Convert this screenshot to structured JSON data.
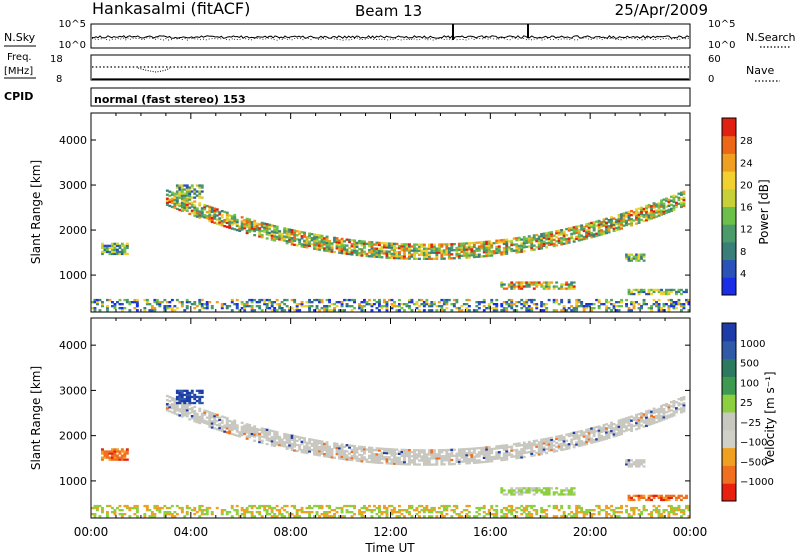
{
  "header": {
    "station": "Hankasalmi (fitACF)",
    "beam": "Beam 13",
    "date": "25/Apr/2009"
  },
  "noise_panel": {
    "left_label": "N.Sky",
    "right_label": "N.Search",
    "left_ticks": [
      "10^5",
      "10^0"
    ],
    "right_ticks": [
      "10^5",
      "10^0"
    ]
  },
  "freq_panel": {
    "label_line1": "Freq.",
    "label_line2": "[MHz]",
    "left_ticks": [
      "18",
      "8"
    ],
    "right_label": "Nave",
    "right_ticks": [
      "60",
      "0"
    ]
  },
  "cpid": {
    "label": "CPID",
    "text": "normal (fast stereo) 153"
  },
  "x_axis": {
    "label": "Time UT",
    "ticks": [
      "00:00",
      "04:00",
      "08:00",
      "12:00",
      "16:00",
      "20:00",
      "00:00"
    ]
  },
  "chart_data": [
    {
      "type": "heatmap",
      "title": "",
      "quantity": "Power",
      "xlabel": "Time UT",
      "ylabel": "Slant Range [km]",
      "xlim": [
        0,
        24
      ],
      "ylim": [
        180,
        4600
      ],
      "y_ticks": [
        1000,
        2000,
        3000,
        4000
      ],
      "colorbar": {
        "label": "Power [dB]",
        "ticks": [
          "4",
          "8",
          "12",
          "16",
          "20",
          "24",
          "28"
        ],
        "colors": [
          "#1a2ee8",
          "#2a52b8",
          "#3a7e7a",
          "#4a9a6a",
          "#6cc04a",
          "#c8d038",
          "#f2d030",
          "#f0a020",
          "#ec6818",
          "#e02010"
        ]
      },
      "echo_regions": [
        {
          "name": "main band",
          "t_start": 3.0,
          "t_end": 23.8,
          "range_center_start": 2700,
          "range_center_min": 1500,
          "range_center_end": 2700,
          "width_km": 320,
          "level": "high"
        },
        {
          "name": "lower band",
          "t_start": 16.4,
          "t_end": 19.4,
          "range_start": 680,
          "range_end": 860,
          "level": "high"
        },
        {
          "name": "near range",
          "t_start": 0,
          "t_end": 24,
          "range_start": 200,
          "range_end": 450,
          "level": "low"
        },
        {
          "name": "early patch",
          "t_start": 0.4,
          "t_end": 1.5,
          "range_start": 1450,
          "range_end": 1700,
          "level": "medium"
        },
        {
          "name": "high patch",
          "t_start": 3.4,
          "t_end": 4.4,
          "range_start": 2700,
          "range_end": 3000,
          "level": "medium"
        },
        {
          "name": "late evening patch",
          "t_start": 21.4,
          "t_end": 22.2,
          "range_start": 1300,
          "range_end": 1480,
          "level": "medium"
        },
        {
          "name": "dawn streak",
          "t_start": 21.5,
          "t_end": 23.9,
          "range_start": 560,
          "range_end": 680,
          "level": "medium"
        }
      ]
    },
    {
      "type": "heatmap",
      "title": "",
      "quantity": "Velocity",
      "xlabel": "Time UT",
      "ylabel": "Slant Range [km]",
      "xlim": [
        0,
        24
      ],
      "ylim": [
        180,
        4600
      ],
      "y_ticks": [
        1000,
        2000,
        3000,
        4000
      ],
      "colorbar": {
        "label": "Velocity [m s⁻¹]",
        "ticks": [
          "1000",
          "500",
          "100",
          "25",
          "−25",
          "−100",
          "−500",
          "−1000"
        ],
        "colors": [
          "#1e3ca8",
          "#2e5aa8",
          "#2e7a60",
          "#3e9a50",
          "#8cd040",
          "#c8c8c0",
          "#d0d0c8",
          "#f0a020",
          "#f07020",
          "#e82010"
        ]
      },
      "echo_regions": [
        {
          "name": "main band",
          "velocity_class": "ground scatter (grey)"
        },
        {
          "name": "lower band",
          "velocity_class": "green (100 to 500)"
        },
        {
          "name": "early patch",
          "velocity_class": "orange (−100 to −500)"
        },
        {
          "name": "high patch",
          "velocity_class": "blue (500 to 1000)"
        },
        {
          "name": "dawn streak",
          "velocity_class": "orange (−100 to −500)"
        }
      ]
    }
  ]
}
